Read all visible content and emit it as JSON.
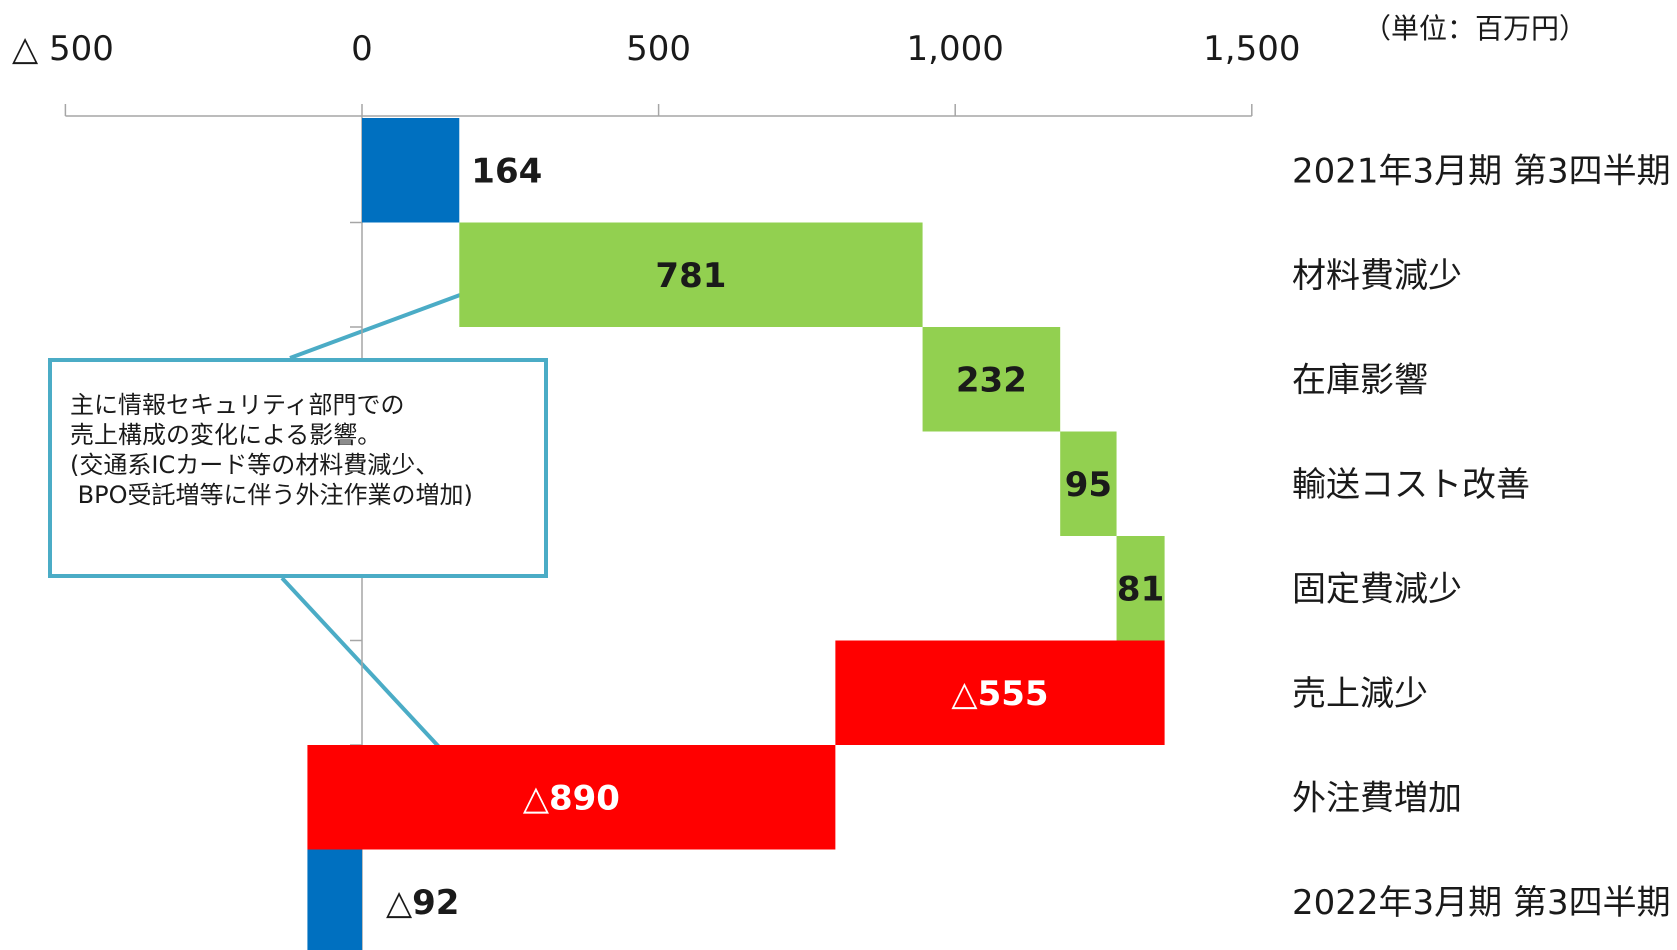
{
  "chart_data": {
    "type": "bar",
    "subtype": "horizontal-waterfall",
    "unit_label": "（単位：百万円）",
    "xlim": [
      -500,
      1500
    ],
    "xticks": [
      {
        "value": -500,
        "label": "△ 500"
      },
      {
        "value": 0,
        "label": "0"
      },
      {
        "value": 500,
        "label": "500"
      },
      {
        "value": 1000,
        "label": "1,000"
      },
      {
        "value": 1500,
        "label": "1,500"
      }
    ],
    "items": [
      {
        "category": "2021年3月期 第3四半期",
        "start": 0,
        "end": 164,
        "label": "164",
        "kind": "total"
      },
      {
        "category": "材料費減少",
        "start": 164,
        "end": 945,
        "label": "781",
        "kind": "increase"
      },
      {
        "category": "在庫影響",
        "start": 945,
        "end": 1177,
        "label": "232",
        "kind": "increase"
      },
      {
        "category": "輸送コスト改善",
        "start": 1177,
        "end": 1272,
        "label": "95",
        "kind": "increase"
      },
      {
        "category": "固定費減少",
        "start": 1272,
        "end": 1353,
        "label": "81",
        "kind": "increase"
      },
      {
        "category": "売上減少",
        "start": 1353,
        "end": 798,
        "label": "△555",
        "kind": "decrease"
      },
      {
        "category": "外注費増加",
        "start": 798,
        "end": -92,
        "label": "△890",
        "kind": "decrease"
      },
      {
        "category": "2022年3月期 第3四半期",
        "start": 0,
        "end": -92,
        "label": "△92",
        "kind": "total"
      }
    ],
    "colors": {
      "total": "#0070c0",
      "increase": "#92d050",
      "decrease": "#ff0000",
      "callout": "#4bacc6"
    },
    "annotation": {
      "lines": [
        "主に情報セキュリティ部門での",
        "売上構成の変化による影響。",
        "",
        "(交通系ICカード等の材料費減少、",
        " BPO受託増等に伴う外注作業の増加)"
      ]
    }
  }
}
